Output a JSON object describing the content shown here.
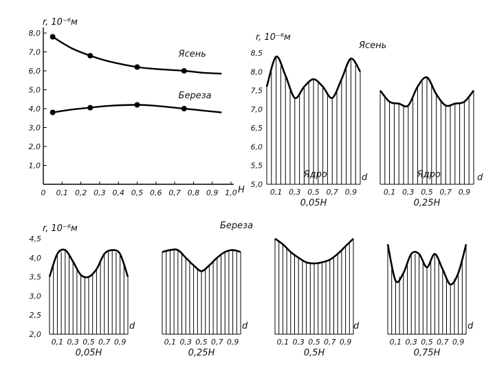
{
  "chart_data": [
    {
      "id": "main",
      "type": "line",
      "ylabel": "r, 10⁻⁶м",
      "xlabel": "H",
      "x_ticks": [
        "0",
        "0,1",
        "0,2",
        "0,3",
        "0,4",
        "0,5",
        "0,6",
        "0,7",
        "0,8",
        "0,9",
        "1,0"
      ],
      "y_ticks": [
        "1,0",
        "2,0",
        "3,0",
        "4,0",
        "5,0",
        "6,0",
        "7,0",
        "8,0"
      ],
      "xlim": [
        0,
        1.0
      ],
      "ylim": [
        0,
        8.0
      ],
      "series": [
        {
          "name": "Ясень",
          "points_x": [
            0.05,
            0.25,
            0.5,
            0.75
          ],
          "points_y": [
            7.8,
            6.8,
            6.2,
            6.0
          ],
          "curve_x": [
            0.05,
            0.15,
            0.25,
            0.35,
            0.5,
            0.6,
            0.75,
            0.85,
            0.95
          ],
          "curve_y": [
            7.8,
            7.2,
            6.8,
            6.5,
            6.2,
            6.1,
            6.0,
            5.9,
            5.85
          ]
        },
        {
          "name": "Береза",
          "points_x": [
            0.05,
            0.25,
            0.5,
            0.75
          ],
          "points_y": [
            3.8,
            4.05,
            4.2,
            4.0
          ],
          "curve_x": [
            0.05,
            0.15,
            0.25,
            0.35,
            0.5,
            0.6,
            0.75,
            0.85,
            0.95
          ],
          "curve_y": [
            3.8,
            3.95,
            4.05,
            4.15,
            4.2,
            4.15,
            4.0,
            3.9,
            3.8
          ]
        }
      ]
    },
    {
      "id": "ash",
      "title": "Ясень",
      "type": "line",
      "ylabel": "r, 10⁻⁶м",
      "xlabel": "d",
      "y_ticks": [
        "5,0",
        "5,5",
        "6,0",
        "6,5",
        "7,0",
        "7,5",
        "8,0",
        "8,5"
      ],
      "ylim": [
        5.0,
        8.5
      ],
      "panels": [
        {
          "caption": "0,05H",
          "inner_label": "Ядро",
          "x_ticks": [
            "0,1",
            "0,3",
            "0,5",
            "0,7",
            "0,9"
          ],
          "x": [
            0,
            0.1,
            0.2,
            0.3,
            0.4,
            0.5,
            0.6,
            0.7,
            0.8,
            0.9,
            1.0
          ],
          "y": [
            7.6,
            8.4,
            7.9,
            7.3,
            7.6,
            7.8,
            7.6,
            7.3,
            7.8,
            8.35,
            8.0
          ]
        },
        {
          "caption": "0,25H",
          "inner_label": "Ядро",
          "x_ticks": [
            "0,1",
            "0,3",
            "0,5",
            "0,7",
            "0,9"
          ],
          "x": [
            0,
            0.1,
            0.2,
            0.3,
            0.4,
            0.5,
            0.6,
            0.7,
            0.8,
            0.9,
            1.0
          ],
          "y": [
            7.5,
            7.2,
            7.15,
            7.1,
            7.6,
            7.85,
            7.4,
            7.1,
            7.15,
            7.2,
            7.5
          ]
        }
      ]
    },
    {
      "id": "birch",
      "title": "Береза",
      "type": "line",
      "ylabel": "r, 10⁻⁶м",
      "xlabel": "d",
      "y_ticks": [
        "2,0",
        "2,5",
        "3,0",
        "3,5",
        "4,0",
        "4,5"
      ],
      "ylim": [
        2.0,
        4.5
      ],
      "panels": [
        {
          "caption": "0,05H",
          "x_ticks": [
            "0,1",
            "0,3",
            "0,5",
            "0,7",
            "0,9"
          ],
          "x": [
            0,
            0.1,
            0.2,
            0.3,
            0.4,
            0.5,
            0.6,
            0.7,
            0.8,
            0.9,
            1.0
          ],
          "y": [
            3.5,
            4.1,
            4.2,
            3.9,
            3.55,
            3.5,
            3.7,
            4.1,
            4.2,
            4.1,
            3.5
          ]
        },
        {
          "caption": "0,25H",
          "x_ticks": [
            "0,1",
            "0,3",
            "0,5",
            "0,7",
            "0,9"
          ],
          "x": [
            0,
            0.1,
            0.2,
            0.3,
            0.4,
            0.5,
            0.6,
            0.7,
            0.8,
            0.9,
            1.0
          ],
          "y": [
            4.15,
            4.2,
            4.2,
            4.0,
            3.8,
            3.65,
            3.8,
            4.0,
            4.15,
            4.2,
            4.15
          ]
        },
        {
          "caption": "0,5H",
          "x_ticks": [
            "0,1",
            "0,3",
            "0,5",
            "0,7",
            "0,9"
          ],
          "x": [
            0,
            0.1,
            0.2,
            0.3,
            0.4,
            0.5,
            0.6,
            0.7,
            0.8,
            0.9,
            1.0
          ],
          "y": [
            4.5,
            4.35,
            4.15,
            4.0,
            3.88,
            3.85,
            3.88,
            3.95,
            4.1,
            4.3,
            4.5
          ]
        },
        {
          "caption": "0,75H",
          "x_ticks": [
            "0,1",
            "0,3",
            "0,5",
            "0,7",
            "0,9"
          ],
          "x": [
            0,
            0.1,
            0.2,
            0.3,
            0.4,
            0.5,
            0.6,
            0.7,
            0.8,
            0.9,
            1.0
          ],
          "y": [
            4.35,
            3.4,
            3.6,
            4.1,
            4.1,
            3.75,
            4.1,
            3.7,
            3.3,
            3.6,
            4.35
          ]
        }
      ]
    }
  ]
}
